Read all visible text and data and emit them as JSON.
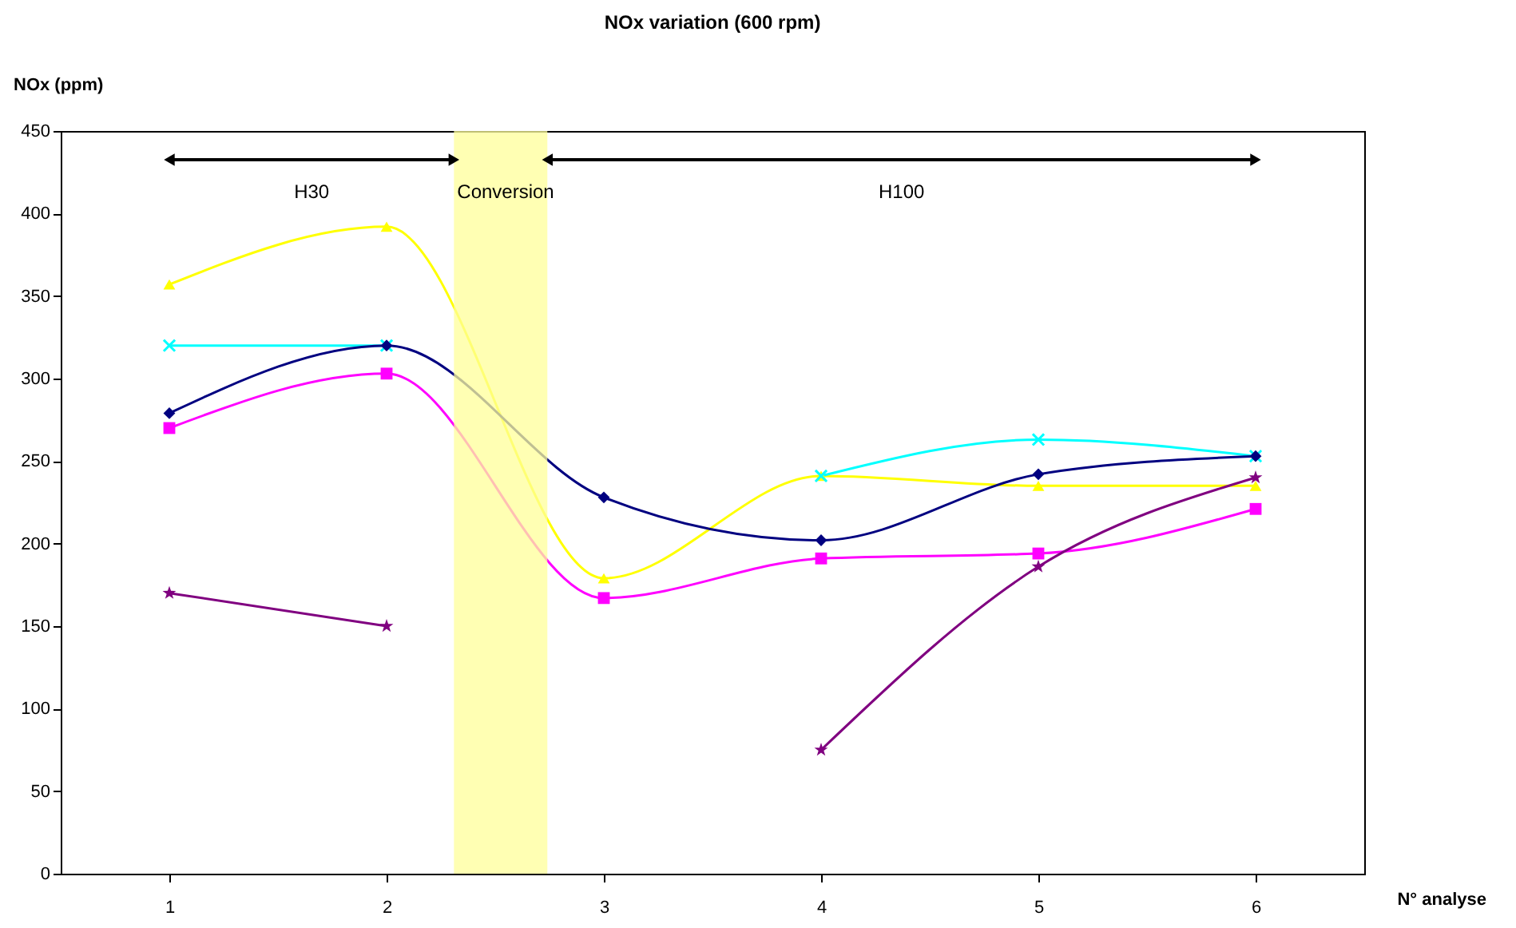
{
  "chart_data": {
    "type": "line",
    "title": "NOx variation (600 rpm)",
    "xlabel": "N° analyse",
    "ylabel": "NOx (ppm)",
    "x": [
      1,
      2,
      3,
      4,
      5,
      6
    ],
    "xlim": [
      0.5,
      6.5
    ],
    "xticks": [
      1,
      2,
      3,
      4,
      5,
      6
    ],
    "ylim": [
      0,
      450
    ],
    "yticks": [
      0,
      50,
      100,
      150,
      200,
      250,
      300,
      350,
      400,
      450
    ],
    "grid": false,
    "legend": false,
    "series": [
      {
        "color": "#ffff00",
        "marker": "triangle",
        "values": [
          357,
          392,
          179,
          241,
          235,
          235
        ]
      },
      {
        "color": "#00ffff",
        "marker": "cross",
        "values": [
          320,
          320,
          null,
          241,
          263,
          253
        ]
      },
      {
        "color": "#000080",
        "marker": "diamond",
        "values": [
          279,
          320,
          228,
          202,
          242,
          253
        ]
      },
      {
        "color": "#ff00ff",
        "marker": "square",
        "values": [
          270,
          303,
          167,
          191,
          194,
          221
        ]
      },
      {
        "color": "#800080",
        "marker": "star",
        "values": [
          170,
          150,
          null,
          75,
          186,
          240
        ]
      }
    ],
    "bands": [
      {
        "axis": "x",
        "from": 2.31,
        "to": 2.74,
        "label": "Conversion",
        "color": "#ffff99"
      }
    ],
    "annotations": [
      "H30",
      "H100"
    ]
  }
}
